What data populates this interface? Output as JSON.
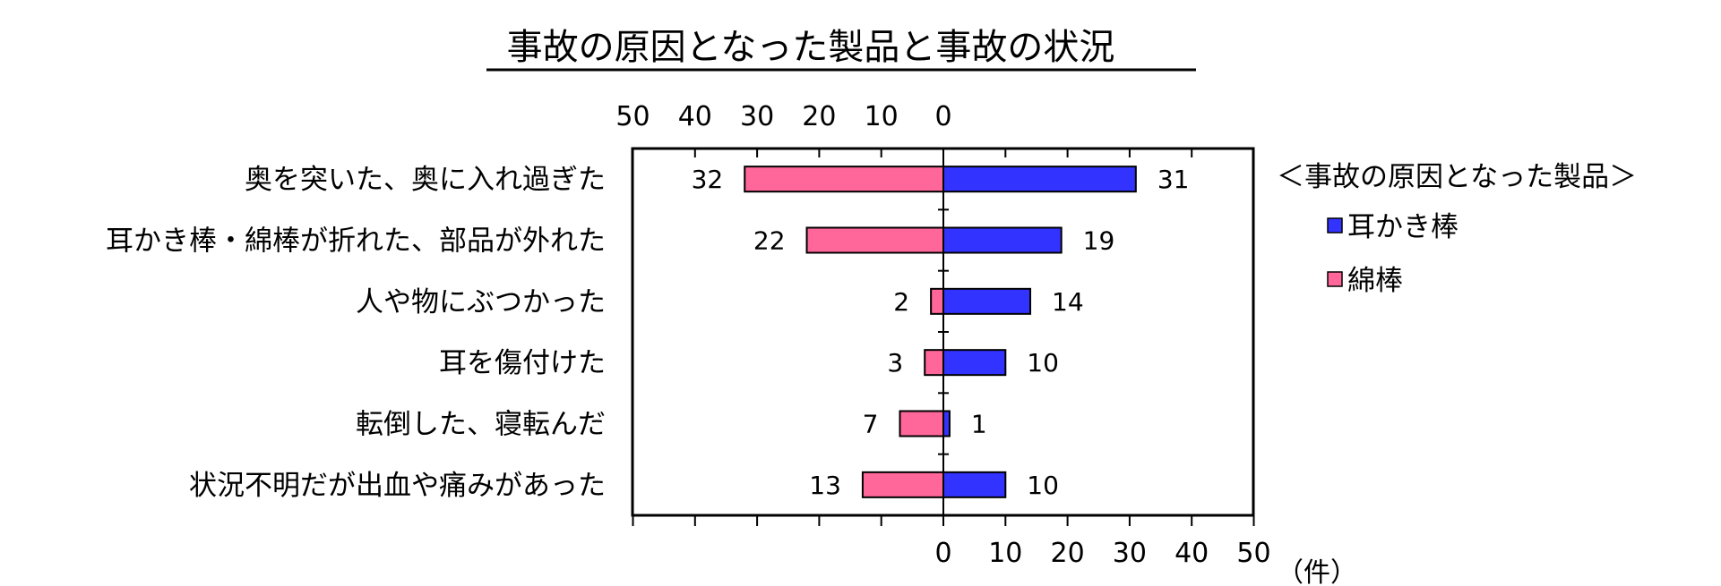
{
  "chart_data": {
    "type": "bar",
    "orientation": "horizontal-diverging",
    "title": "事故の原因となった製品と事故の状況",
    "categories": [
      "奥を突いた、奥に入れ過ぎた",
      "耳かき棒・綿棒が折れた、部品が外れた",
      "人や物にぶつかった",
      "耳を傷付けた",
      "転倒した、寝転んだ",
      "状況不明だが出血や痛みがあった"
    ],
    "series": [
      {
        "name": "耳かき棒",
        "color": "#3333ff",
        "side": "right",
        "values": [
          31,
          19,
          14,
          10,
          1,
          10
        ]
      },
      {
        "name": "綿棒",
        "color": "#ff6699",
        "side": "left",
        "values": [
          32,
          22,
          2,
          3,
          7,
          13
        ]
      }
    ],
    "top_ticks": [
      "50",
      "40",
      "30",
      "20",
      "10",
      "0"
    ],
    "bottom_ticks": [
      "0",
      "10",
      "20",
      "30",
      "40",
      "50"
    ],
    "unit_label": "（件）",
    "xlim": [
      -50,
      50
    ],
    "legend_title": "＜事故の原因となった製品＞",
    "legend_position": "right"
  }
}
